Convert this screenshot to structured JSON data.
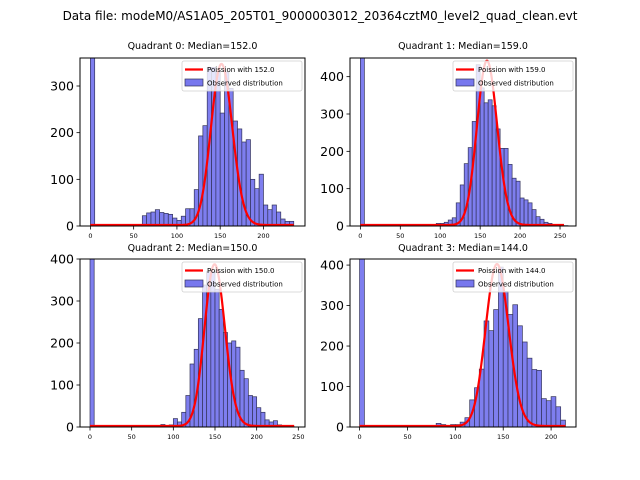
{
  "suptitle": "Data file: modeM0/AS1A05_205T01_9000003012_20364cztM0_level2_quad_clean.evt",
  "colors": {
    "bar_fill": "#7777ee",
    "bar_edge": "#33335a",
    "poisson": "#ff0000"
  },
  "chart_data": [
    {
      "type": "bar",
      "title": "Quadrant 0: Median=152.0",
      "median": 152.0,
      "legend": {
        "poisson": "Poission with 152.0",
        "observed": "Observed distribution",
        "placement": "top-right"
      },
      "xlim": [
        -12,
        248
      ],
      "ylim": [
        0,
        360
      ],
      "xticks": [
        0,
        50,
        100,
        150,
        200
      ],
      "yticks": [
        0,
        100,
        200,
        300
      ],
      "bin_width": 5,
      "bins": [
        0,
        55,
        60,
        65,
        70,
        75,
        80,
        85,
        90,
        95,
        100,
        105,
        110,
        115,
        120,
        125,
        130,
        135,
        140,
        145,
        150,
        155,
        160,
        165,
        170,
        175,
        180,
        185,
        190,
        195,
        200,
        205,
        210,
        215,
        220,
        225,
        230
      ],
      "values": [
        2000,
        3,
        22,
        28,
        30,
        35,
        29,
        27,
        25,
        17,
        12,
        21,
        37,
        37,
        78,
        193,
        215,
        340,
        340,
        330,
        242,
        330,
        295,
        225,
        208,
        180,
        185,
        100,
        80,
        111,
        45,
        35,
        45,
        30,
        15,
        10,
        10
      ],
      "poisson_peak": 345,
      "poisson_xrange": [
        0,
        235
      ]
    },
    {
      "type": "bar",
      "title": "Quadrant 1: Median=159.0",
      "median": 159.0,
      "legend": {
        "poisson": "Poission with 159.0",
        "observed": "Observed distribution",
        "placement": "top-right"
      },
      "xlim": [
        -13,
        270
      ],
      "ylim": [
        0,
        450
      ],
      "xticks": [
        0,
        50,
        100,
        150,
        200,
        250
      ],
      "yticks": [
        0,
        100,
        200,
        300,
        400
      ],
      "bin_width": 5,
      "bins": [
        0,
        70,
        75,
        80,
        85,
        90,
        95,
        100,
        105,
        110,
        115,
        120,
        125,
        130,
        135,
        140,
        145,
        150,
        155,
        160,
        165,
        170,
        175,
        180,
        185,
        190,
        195,
        200,
        205,
        210,
        215,
        220,
        225,
        230,
        235,
        240,
        245,
        250,
        255
      ],
      "values": [
        2000,
        2,
        3,
        3,
        3,
        2,
        7,
        7,
        10,
        16,
        22,
        62,
        110,
        167,
        210,
        280,
        432,
        370,
        330,
        338,
        322,
        260,
        208,
        208,
        165,
        128,
        120,
        75,
        70,
        62,
        44,
        25,
        18,
        10,
        7,
        3,
        1,
        1,
        1
      ],
      "poisson_peak": 440,
      "poisson_xrange": [
        0,
        255
      ]
    },
    {
      "type": "bar",
      "title": "Quadrant 2: Median=150.0",
      "median": 150.0,
      "legend": {
        "poisson": "Poission with 150.0",
        "observed": "Observed distribution",
        "placement": "top-right"
      },
      "xlim": [
        -12,
        258
      ],
      "ylim": [
        0,
        400
      ],
      "xticks": [
        0,
        50,
        100,
        150,
        200,
        250
      ],
      "yticks": [
        0,
        100,
        200,
        300,
        400
      ],
      "bin_width": 5,
      "bins": [
        0,
        75,
        80,
        85,
        90,
        95,
        100,
        105,
        110,
        115,
        120,
        125,
        130,
        135,
        140,
        145,
        150,
        155,
        160,
        165,
        170,
        175,
        180,
        185,
        190,
        195,
        200,
        205,
        210,
        215,
        220,
        225,
        230,
        235,
        240
      ],
      "values": [
        2000,
        3,
        1,
        6,
        3,
        5,
        20,
        12,
        35,
        75,
        150,
        185,
        258,
        338,
        370,
        370,
        328,
        280,
        225,
        200,
        205,
        190,
        135,
        115,
        75,
        72,
        46,
        35,
        17,
        12,
        15,
        5,
        2,
        1,
        1
      ],
      "poisson_peak": 385,
      "poisson_xrange": [
        0,
        245
      ]
    },
    {
      "type": "bar",
      "title": "Quadrant 3: Median=144.0",
      "median": 144.0,
      "legend": {
        "poisson": "Poission with 144.0",
        "observed": "Observed distribution",
        "placement": "top-right"
      },
      "xlim": [
        -10,
        226
      ],
      "ylim": [
        0,
        415
      ],
      "xticks": [
        0,
        50,
        100,
        150,
        200
      ],
      "yticks": [
        0,
        100,
        200,
        300,
        400
      ],
      "bin_width": 5,
      "bins": [
        0,
        60,
        65,
        70,
        75,
        80,
        85,
        90,
        95,
        100,
        105,
        110,
        115,
        120,
        125,
        130,
        135,
        140,
        145,
        150,
        155,
        160,
        165,
        170,
        175,
        180,
        185,
        190,
        195,
        200,
        205,
        210
      ],
      "values": [
        2000,
        1,
        1,
        1,
        1,
        9,
        6,
        3,
        6,
        6,
        12,
        23,
        67,
        97,
        143,
        262,
        238,
        290,
        395,
        335,
        278,
        302,
        250,
        210,
        170,
        142,
        140,
        70,
        65,
        75,
        50,
        17
      ],
      "poisson_peak": 400,
      "poisson_xrange": [
        0,
        215
      ]
    }
  ]
}
